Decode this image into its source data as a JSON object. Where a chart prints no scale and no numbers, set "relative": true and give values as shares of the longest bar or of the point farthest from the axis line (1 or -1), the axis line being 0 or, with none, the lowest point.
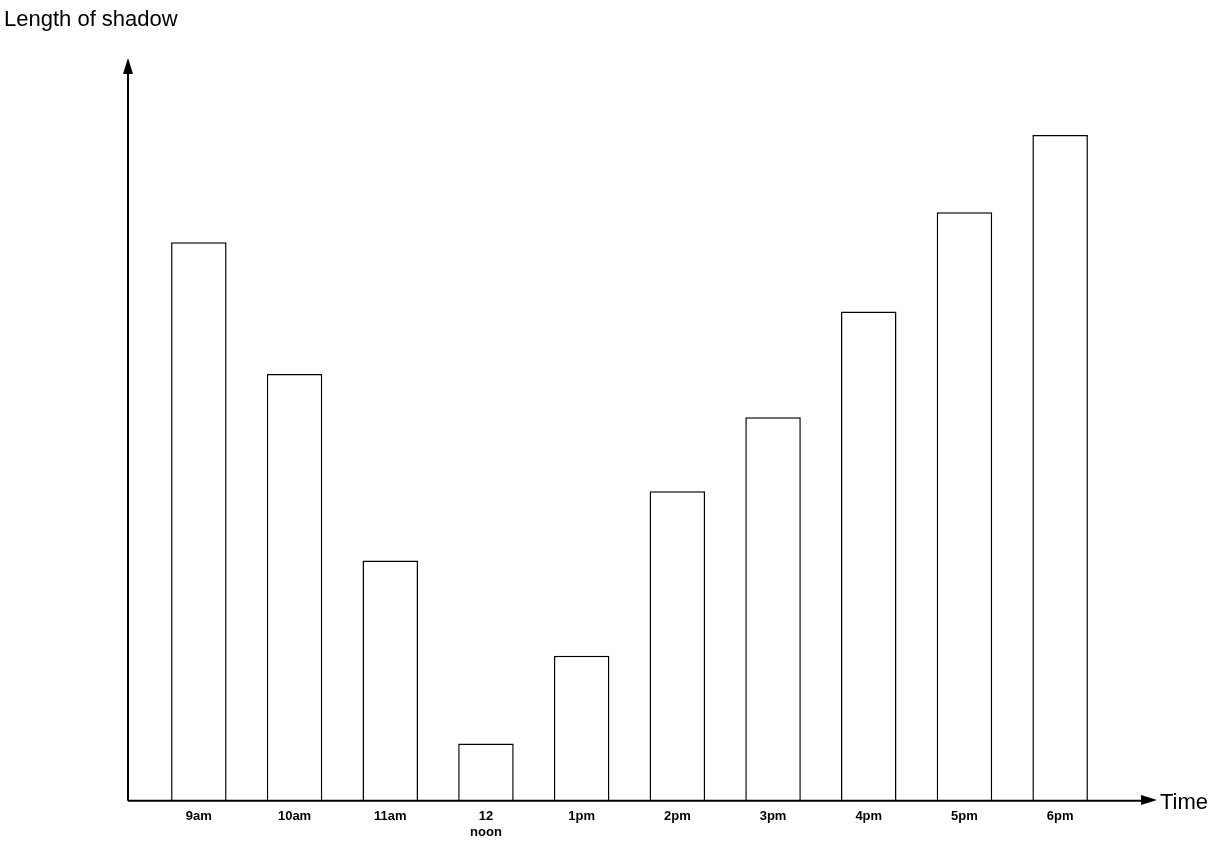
{
  "chart_data": {
    "type": "bar",
    "relative": true,
    "xlabel": "Time",
    "ylabel": "Length of shadow",
    "categories": [
      "9am",
      "10am",
      "11am",
      "12 noon",
      "1pm",
      "2pm",
      "3pm",
      "4pm",
      "5pm",
      "6pm"
    ],
    "values": [
      0.839,
      0.641,
      0.361,
      0.086,
      0.218,
      0.465,
      0.576,
      0.735,
      0.884,
      1
    ],
    "color": "#ffffff",
    "legend": false,
    "grid": false
  }
}
